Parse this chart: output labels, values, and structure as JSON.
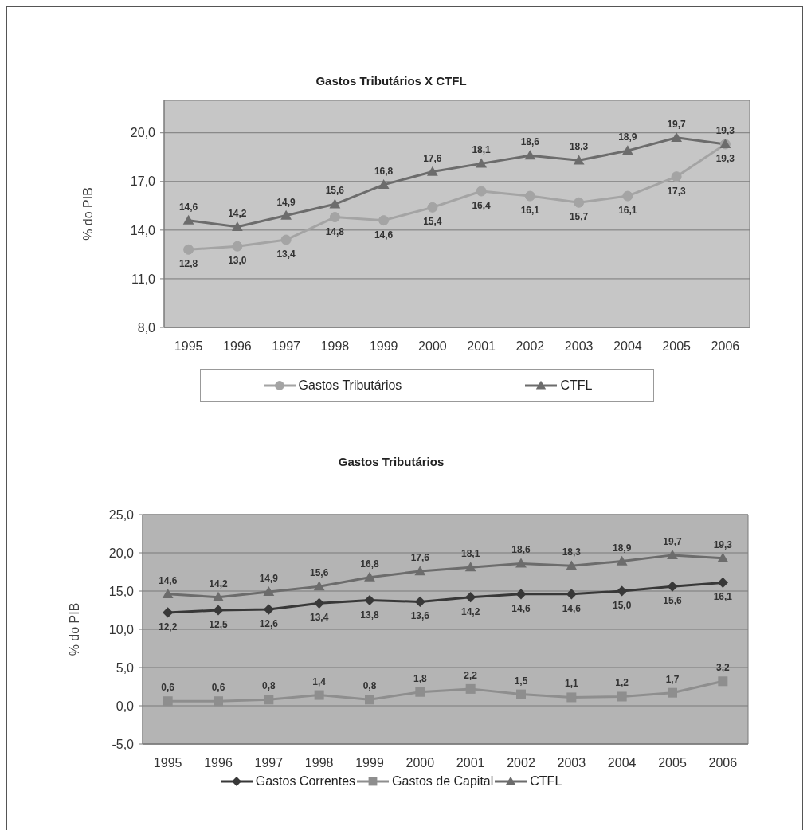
{
  "chart_data": [
    {
      "type": "line",
      "title": "Gastos Tributários X CTFL",
      "ylabel": "% do PIB",
      "categories": [
        "1995",
        "1996",
        "1997",
        "1998",
        "1999",
        "2000",
        "2001",
        "2002",
        "2003",
        "2004",
        "2005",
        "2006"
      ],
      "series": [
        {
          "name": "Gastos Tributários",
          "color": "#a4a4a4",
          "marker": "circle",
          "values": [
            12.8,
            13.0,
            13.4,
            14.8,
            14.6,
            15.4,
            16.4,
            16.1,
            15.7,
            16.1,
            17.3,
            19.3
          ],
          "value_labels": [
            "12,8",
            "13,0",
            "13,4",
            "14,8",
            "14,6",
            "15,4",
            "16,4",
            "16,1",
            "15,7",
            "16,1",
            "17,3",
            "19,3"
          ]
        },
        {
          "name": "CTFL",
          "color": "#6c6c6c",
          "marker": "triangle",
          "values": [
            14.6,
            14.2,
            14.9,
            15.6,
            16.8,
            17.6,
            18.1,
            18.6,
            18.3,
            18.9,
            19.7,
            19.3
          ],
          "value_labels": [
            "14,6",
            "14,2",
            "14,9",
            "15,6",
            "16,8",
            "17,6",
            "18,1",
            "18,6",
            "18,3",
            "18,9",
            "19,7",
            "19,3"
          ]
        }
      ],
      "ylim": [
        8,
        22
      ],
      "yticks": [
        {
          "value": 8,
          "label": "8,0"
        },
        {
          "value": 11,
          "label": "11,0"
        },
        {
          "value": 14,
          "label": "14,0"
        },
        {
          "value": 17,
          "label": "17,0"
        },
        {
          "value": 20,
          "label": "20,0"
        }
      ],
      "grid": "y",
      "legend": "bottom"
    },
    {
      "type": "line",
      "title": "Gastos Tributários",
      "ylabel": "% do PIB",
      "categories": [
        "1995",
        "1996",
        "1997",
        "1998",
        "1999",
        "2000",
        "2001",
        "2002",
        "2003",
        "2004",
        "2005",
        "2006"
      ],
      "series": [
        {
          "name": "Gastos Correntes",
          "color": "#383838",
          "marker": "diamond",
          "values": [
            12.2,
            12.5,
            12.6,
            13.4,
            13.8,
            13.6,
            14.2,
            14.6,
            14.6,
            15.0,
            15.6,
            16.1
          ],
          "value_labels": [
            "12,2",
            "12,5",
            "12,6",
            "13,4",
            "13,8",
            "13,6",
            "14,2",
            "14,6",
            "14,6",
            "15,0",
            "15,6",
            "16,1"
          ]
        },
        {
          "name": "Gastos de Capital",
          "color": "#8e8e8e",
          "marker": "square",
          "values": [
            0.6,
            0.6,
            0.8,
            1.4,
            0.8,
            1.8,
            2.2,
            1.5,
            1.1,
            1.2,
            1.7,
            3.2
          ],
          "value_labels": [
            "0,6",
            "0,6",
            "0,8",
            "1,4",
            "0,8",
            "1,8",
            "2,2",
            "1,5",
            "1,1",
            "1,2",
            "1,7",
            "3,2"
          ]
        },
        {
          "name": "CTFL",
          "color": "#6c6c6c",
          "marker": "triangle",
          "values": [
            14.6,
            14.2,
            14.9,
            15.6,
            16.8,
            17.6,
            18.1,
            18.6,
            18.3,
            18.9,
            19.7,
            19.3
          ],
          "value_labels": [
            "14,6",
            "14,2",
            "14,9",
            "15,6",
            "16,8",
            "17,6",
            "18,1",
            "18,6",
            "18,3",
            "18,9",
            "19,7",
            "19,3"
          ]
        }
      ],
      "ylim": [
        -5,
        25
      ],
      "yticks": [
        {
          "value": -5,
          "label": "-5,0"
        },
        {
          "value": 0,
          "label": "0,0"
        },
        {
          "value": 5,
          "label": "5,0"
        },
        {
          "value": 10,
          "label": "10,0"
        },
        {
          "value": 15,
          "label": "15,0"
        },
        {
          "value": 20,
          "label": "20,0"
        },
        {
          "value": 25,
          "label": "25,0"
        }
      ],
      "grid": "y",
      "legend": "bottom"
    }
  ]
}
